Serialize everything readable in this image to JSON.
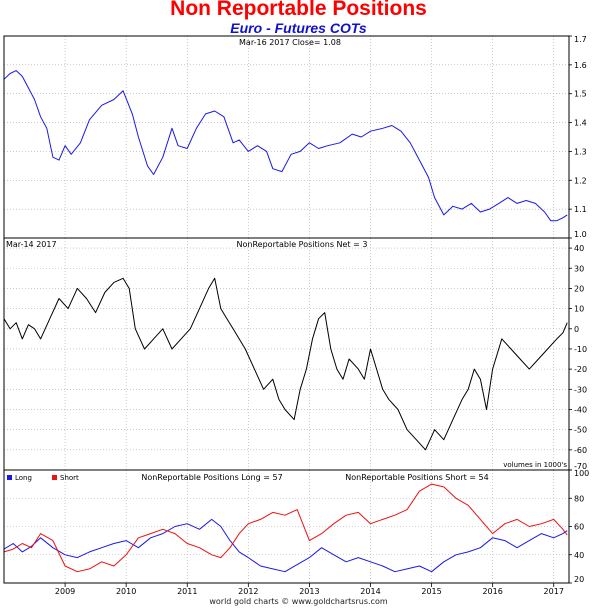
{
  "header": {
    "title": "Non Reportable Positions",
    "subtitle": "Euro - Futures COTs"
  },
  "footer": {
    "credit": "world gold charts © www.goldchartsrus.com"
  },
  "colors": {
    "price": "#1a1ae6",
    "net": "#000000",
    "long": "#1a1ae6",
    "short": "#ee1111",
    "grid": "#aaaaaa"
  },
  "x_axis": {
    "labels": [
      "2009",
      "2010",
      "2011",
      "2012",
      "2013",
      "2014",
      "2015",
      "2016",
      "2017"
    ],
    "positions": [
      2009.0,
      2010.0,
      2011.0,
      2012.0,
      2013.0,
      2014.0,
      2015.0,
      2016.0,
      2017.0
    ],
    "range": [
      2008.0,
      2017.25
    ]
  },
  "chart_data": [
    {
      "type": "line",
      "panel": "price",
      "label": "Mar-16  2017   Close= 1.08",
      "ylim": [
        1.0,
        1.7
      ],
      "y_ticks": [
        "1.0",
        "1.1",
        "1.2",
        "1.3",
        "1.4",
        "1.5",
        "1.6",
        "1.7"
      ],
      "y_tick_values": [
        1.0,
        1.1,
        1.2,
        1.3,
        1.4,
        1.5,
        1.6,
        1.7
      ],
      "series": [
        {
          "x": [
            2008.0,
            2008.1,
            2008.2,
            2008.3,
            2008.4,
            2008.5,
            2008.6,
            2008.7,
            2008.8,
            2008.9,
            2009.0,
            2009.1,
            2009.25,
            2009.4,
            2009.6,
            2009.8,
            2009.95,
            2010.1,
            2010.2,
            2010.35,
            2010.45,
            2010.6,
            2010.75,
            2010.85,
            2011.0,
            2011.15,
            2011.3,
            2011.45,
            2011.6,
            2011.75,
            2011.85,
            2012.0,
            2012.15,
            2012.3,
            2012.4,
            2012.55,
            2012.7,
            2012.85,
            2013.0,
            2013.15,
            2013.3,
            2013.5,
            2013.7,
            2013.85,
            2014.0,
            2014.2,
            2014.35,
            2014.5,
            2014.65,
            2014.8,
            2014.95,
            2015.05,
            2015.2,
            2015.35,
            2015.5,
            2015.65,
            2015.8,
            2015.95,
            2016.1,
            2016.25,
            2016.4,
            2016.55,
            2016.7,
            2016.85,
            2016.95,
            2017.05,
            2017.15,
            2017.22
          ],
          "y": [
            1.55,
            1.57,
            1.58,
            1.56,
            1.52,
            1.48,
            1.42,
            1.38,
            1.28,
            1.27,
            1.32,
            1.29,
            1.33,
            1.41,
            1.46,
            1.48,
            1.51,
            1.43,
            1.35,
            1.25,
            1.22,
            1.28,
            1.38,
            1.32,
            1.31,
            1.38,
            1.43,
            1.44,
            1.42,
            1.33,
            1.34,
            1.3,
            1.32,
            1.3,
            1.24,
            1.23,
            1.29,
            1.3,
            1.33,
            1.31,
            1.32,
            1.33,
            1.36,
            1.35,
            1.37,
            1.38,
            1.39,
            1.37,
            1.33,
            1.27,
            1.21,
            1.14,
            1.08,
            1.11,
            1.1,
            1.12,
            1.09,
            1.1,
            1.12,
            1.14,
            1.12,
            1.13,
            1.12,
            1.09,
            1.06,
            1.06,
            1.07,
            1.08
          ]
        }
      ]
    },
    {
      "type": "line",
      "panel": "net",
      "label_left": "Mar-14  2017",
      "label": "NonReportable Positions Net = 3",
      "unit_label": "volumes in 1000's",
      "ylim": [
        -70,
        45
      ],
      "y_ticks": [
        "40",
        "30",
        "20",
        "10",
        "0",
        "-10",
        "-20",
        "-30",
        "-40",
        "-50",
        "-60",
        "-70"
      ],
      "y_tick_values": [
        40,
        30,
        20,
        10,
        0,
        -10,
        -20,
        -30,
        -40,
        -50,
        -60,
        -70
      ],
      "series": [
        {
          "x": [
            2008.0,
            2008.1,
            2008.2,
            2008.3,
            2008.4,
            2008.5,
            2008.6,
            2008.75,
            2008.9,
            2009.05,
            2009.2,
            2009.35,
            2009.5,
            2009.65,
            2009.8,
            2009.95,
            2010.05,
            2010.15,
            2010.3,
            2010.45,
            2010.6,
            2010.75,
            2010.9,
            2011.05,
            2011.2,
            2011.35,
            2011.45,
            2011.55,
            2011.65,
            2011.75,
            2011.85,
            2011.95,
            2012.1,
            2012.25,
            2012.4,
            2012.5,
            2012.6,
            2012.75,
            2012.85,
            2012.95,
            2013.05,
            2013.15,
            2013.25,
            2013.35,
            2013.45,
            2013.55,
            2013.65,
            2013.8,
            2013.9,
            2014.0,
            2014.1,
            2014.2,
            2014.3,
            2014.45,
            2014.6,
            2014.75,
            2014.9,
            2015.05,
            2015.2,
            2015.35,
            2015.5,
            2015.6,
            2015.7,
            2015.8,
            2015.9,
            2016.0,
            2016.15,
            2016.3,
            2016.45,
            2016.6,
            2016.75,
            2016.9,
            2017.05,
            2017.15,
            2017.22
          ],
          "y": [
            5,
            0,
            3,
            -5,
            2,
            0,
            -5,
            5,
            15,
            10,
            20,
            15,
            8,
            18,
            23,
            25,
            20,
            0,
            -10,
            -5,
            0,
            -10,
            -5,
            0,
            10,
            20,
            25,
            10,
            5,
            0,
            -5,
            -10,
            -20,
            -30,
            -25,
            -35,
            -40,
            -45,
            -30,
            -20,
            -5,
            5,
            8,
            -10,
            -20,
            -25,
            -15,
            -20,
            -25,
            -10,
            -20,
            -30,
            -35,
            -40,
            -50,
            -55,
            -60,
            -50,
            -55,
            -45,
            -35,
            -30,
            -20,
            -25,
            -40,
            -20,
            -5,
            -10,
            -15,
            -20,
            -15,
            -10,
            -5,
            -2,
            3
          ]
        }
      ]
    },
    {
      "type": "line",
      "panel": "long_short",
      "label": "NonReportable Positions Long = 57",
      "label2": "NonReportable Positions Short = 54",
      "ylim": [
        20,
        100
      ],
      "y_ticks": [
        "100",
        "80",
        "60",
        "40",
        "20"
      ],
      "y_tick_values": [
        100,
        80,
        60,
        40,
        20
      ],
      "legend": [
        "Long",
        "Short"
      ],
      "legend_position": "top-left",
      "series": [
        {
          "name": "Long",
          "x": [
            2008.0,
            2008.15,
            2008.3,
            2008.45,
            2008.6,
            2008.8,
            2009.0,
            2009.2,
            2009.4,
            2009.6,
            2009.8,
            2010.0,
            2010.2,
            2010.4,
            2010.6,
            2010.8,
            2011.0,
            2011.2,
            2011.4,
            2011.55,
            2011.7,
            2011.85,
            2012.0,
            2012.2,
            2012.4,
            2012.6,
            2012.8,
            2013.0,
            2013.2,
            2013.4,
            2013.6,
            2013.8,
            2014.0,
            2014.2,
            2014.4,
            2014.6,
            2014.8,
            2015.0,
            2015.2,
            2015.4,
            2015.6,
            2015.8,
            2016.0,
            2016.2,
            2016.4,
            2016.6,
            2016.8,
            2017.0,
            2017.15,
            2017.22
          ],
          "y": [
            44,
            48,
            42,
            46,
            52,
            45,
            40,
            38,
            42,
            45,
            48,
            50,
            45,
            52,
            55,
            60,
            62,
            58,
            65,
            60,
            50,
            42,
            38,
            32,
            30,
            28,
            33,
            38,
            45,
            40,
            35,
            38,
            35,
            32,
            28,
            30,
            32,
            28,
            35,
            40,
            42,
            45,
            52,
            50,
            45,
            50,
            55,
            52,
            55,
            57
          ]
        },
        {
          "name": "Short",
          "x": [
            2008.0,
            2008.15,
            2008.3,
            2008.45,
            2008.6,
            2008.8,
            2009.0,
            2009.2,
            2009.4,
            2009.6,
            2009.8,
            2010.0,
            2010.2,
            2010.4,
            2010.6,
            2010.8,
            2011.0,
            2011.2,
            2011.4,
            2011.55,
            2011.7,
            2011.85,
            2012.0,
            2012.2,
            2012.4,
            2012.6,
            2012.8,
            2013.0,
            2013.2,
            2013.4,
            2013.6,
            2013.8,
            2014.0,
            2014.2,
            2014.4,
            2014.6,
            2014.8,
            2015.0,
            2015.2,
            2015.4,
            2015.6,
            2015.8,
            2016.0,
            2016.2,
            2016.4,
            2016.6,
            2016.8,
            2017.0,
            2017.15,
            2017.22
          ],
          "y": [
            42,
            44,
            48,
            45,
            55,
            50,
            32,
            28,
            30,
            35,
            32,
            40,
            52,
            55,
            58,
            55,
            48,
            45,
            40,
            38,
            45,
            55,
            62,
            65,
            70,
            68,
            72,
            50,
            55,
            62,
            68,
            70,
            62,
            65,
            68,
            72,
            85,
            90,
            88,
            80,
            75,
            65,
            55,
            62,
            65,
            60,
            62,
            65,
            58,
            54
          ]
        }
      ]
    }
  ]
}
